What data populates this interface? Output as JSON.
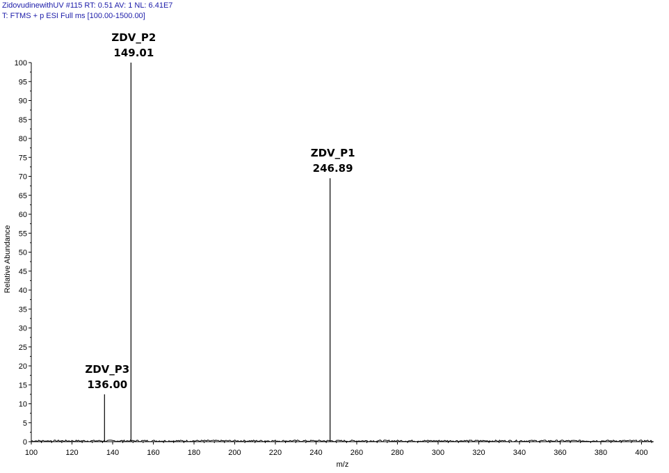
{
  "header": {
    "line1": "ZidovudinewithUV #115  RT: 0.51  AV: 1  NL: 6.41E7",
    "line2": "T: FTMS + p ESI Full ms [100.00-1500.00]"
  },
  "chart_data": {
    "type": "stick_spectrum",
    "xlabel": "m/z",
    "ylabel": "Relative Abundance",
    "xlim": [
      100,
      406
    ],
    "ylim": [
      0,
      100
    ],
    "xticks": [
      100,
      120,
      140,
      160,
      180,
      200,
      220,
      240,
      260,
      280,
      300,
      320,
      340,
      360,
      380,
      400
    ],
    "yticks": [
      0,
      5,
      10,
      15,
      20,
      25,
      30,
      35,
      40,
      45,
      50,
      55,
      60,
      65,
      70,
      75,
      80,
      85,
      90,
      95,
      100
    ],
    "peaks": [
      {
        "mz": 136.0,
        "abundance": 12.5,
        "name": "ZDV_P3",
        "label": "136.00"
      },
      {
        "mz": 149.01,
        "abundance": 100,
        "name": "ZDV_P2",
        "label": "149.01"
      },
      {
        "mz": 246.89,
        "abundance": 69.5,
        "name": "ZDV_P1",
        "label": "246.89"
      }
    ],
    "grid": false,
    "legend": "none",
    "colors": {
      "sticks": "#000000",
      "header_text": "#1a1aa8"
    }
  }
}
